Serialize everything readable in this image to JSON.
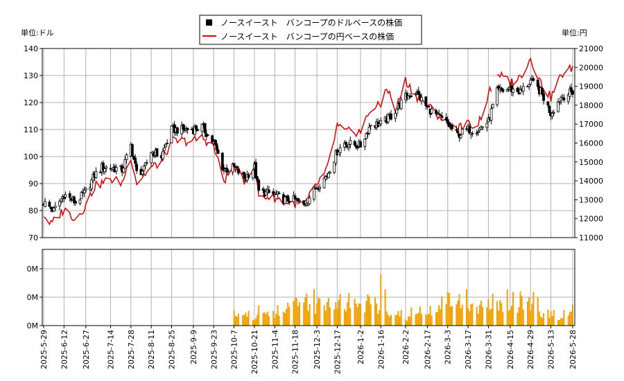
{
  "chart_data": {
    "type": "candlestick",
    "legend": [
      {
        "name": "ノースイースト　バンコープのドルベースの株価",
        "color": "#000000",
        "symbol": "square"
      },
      {
        "name": "ノースイースト　バンコープの円ベースの株価",
        "color": "#dd0000",
        "symbol": "line"
      }
    ],
    "legend_position": "top-center",
    "grid": true,
    "price_panel": {
      "left_unit": "単位:ドル",
      "right_unit": "単位:円",
      "ylim_left": [
        70,
        140
      ],
      "ylim_right": [
        11000,
        21000
      ],
      "y_ticks_left": [
        "70",
        "80",
        "90",
        "100",
        "110",
        "120",
        "130",
        "140"
      ],
      "y_ticks_right": [
        "11000",
        "12000",
        "13000",
        "14000",
        "15000",
        "16000",
        "17000",
        "18000",
        "19000",
        "20000",
        "21000"
      ]
    },
    "volume_panel": {
      "y_ticks": [
        "0M",
        "0M",
        "0M"
      ],
      "color": "#f0a000"
    },
    "x_ticks": [
      "2025-5-29",
      "2025-6-12",
      "2025-6-27",
      "2025-7-14",
      "2025-7-28",
      "2025-8-11",
      "2025-8-25",
      "2025-9-9",
      "2025-9-23",
      "2025-10-7",
      "2025-10-21",
      "2025-11-4",
      "2025-11-18",
      "2025-12-3",
      "2025-12-17",
      "2026-1-2",
      "2026-1-16",
      "2026-2-2",
      "2026-2-17",
      "2026-3-3",
      "2026-3-17",
      "2026-3-31",
      "2026-4-15",
      "2026-4-29",
      "2026-5-13",
      "2026-5-28"
    ],
    "usd_price_anchors": [
      [
        "2025-5-29",
        83
      ],
      [
        "2025-6-5",
        80
      ],
      [
        "2025-6-12",
        86
      ],
      [
        "2025-6-20",
        83
      ],
      [
        "2025-6-27",
        87
      ],
      [
        "2025-7-3",
        93
      ],
      [
        "2025-7-8",
        96
      ],
      [
        "2025-7-14",
        96
      ],
      [
        "2025-7-22",
        95
      ],
      [
        "2025-7-28",
        104
      ],
      [
        "2025-8-1",
        94
      ],
      [
        "2025-8-6",
        95
      ],
      [
        "2025-8-11",
        102
      ],
      [
        "2025-8-18",
        100
      ],
      [
        "2025-8-25",
        110
      ],
      [
        "2025-9-2",
        110
      ],
      [
        "2025-9-9",
        110
      ],
      [
        "2025-9-15",
        111
      ],
      [
        "2025-9-23",
        105
      ],
      [
        "2025-9-30",
        95
      ],
      [
        "2025-10-7",
        96
      ],
      [
        "2025-10-14",
        92
      ],
      [
        "2025-10-21",
        96
      ],
      [
        "2025-10-24",
        87
      ],
      [
        "2025-11-4",
        86
      ],
      [
        "2025-11-11",
        84
      ],
      [
        "2025-11-18",
        84
      ],
      [
        "2025-11-24",
        82
      ],
      [
        "2025-12-3",
        89
      ],
      [
        "2025-12-10",
        93
      ],
      [
        "2025-12-17",
        102
      ],
      [
        "2025-12-22",
        105
      ],
      [
        "2026-1-2",
        104
      ],
      [
        "2026-1-9",
        112
      ],
      [
        "2026-1-16",
        112
      ],
      [
        "2026-1-23",
        115
      ],
      [
        "2026-2-2",
        122
      ],
      [
        "2026-2-9",
        124
      ],
      [
        "2026-2-17",
        118
      ],
      [
        "2026-2-24",
        115
      ],
      [
        "2026-3-3",
        112
      ],
      [
        "2026-3-10",
        108
      ],
      [
        "2026-3-17",
        110
      ],
      [
        "2026-3-24",
        110
      ],
      [
        "2026-3-31",
        113
      ],
      [
        "2026-4-6",
        124
      ],
      [
        "2026-4-15",
        125
      ],
      [
        "2026-4-22",
        124
      ],
      [
        "2026-4-29",
        128
      ],
      [
        "2026-5-6",
        124
      ],
      [
        "2026-5-13",
        116
      ],
      [
        "2026-5-20",
        122
      ],
      [
        "2026-5-28",
        124
      ]
    ],
    "jpy_price_anchors": [
      [
        "2025-5-29",
        12200
      ],
      [
        "2025-6-3",
        11700
      ],
      [
        "2025-6-12",
        12500
      ],
      [
        "2025-6-20",
        12000
      ],
      [
        "2025-6-27",
        12700
      ],
      [
        "2025-7-3",
        13700
      ],
      [
        "2025-7-14",
        14100
      ],
      [
        "2025-7-22",
        13900
      ],
      [
        "2025-7-28",
        15300
      ],
      [
        "2025-8-1",
        13900
      ],
      [
        "2025-8-11",
        14700
      ],
      [
        "2025-8-18",
        15000
      ],
      [
        "2025-8-25",
        16100
      ],
      [
        "2025-9-9",
        16100
      ],
      [
        "2025-9-15",
        16300
      ],
      [
        "2025-9-23",
        15800
      ],
      [
        "2025-9-30",
        14000
      ],
      [
        "2025-10-7",
        14800
      ],
      [
        "2025-10-14",
        14000
      ],
      [
        "2025-10-21",
        14800
      ],
      [
        "2025-10-24",
        13200
      ],
      [
        "2025-11-4",
        13100
      ],
      [
        "2025-11-11",
        12900
      ],
      [
        "2025-11-18",
        12800
      ],
      [
        "2025-11-25",
        12800
      ],
      [
        "2025-12-3",
        13800
      ],
      [
        "2025-12-10",
        14600
      ],
      [
        "2025-12-17",
        16900
      ],
      [
        "2025-12-22",
        16600
      ],
      [
        "2026-1-2",
        16600
      ],
      [
        "2026-1-9",
        17800
      ],
      [
        "2026-1-16",
        18000
      ],
      [
        "2026-1-20",
        19000
      ],
      [
        "2026-1-26",
        17700
      ],
      [
        "2026-2-2",
        19300
      ],
      [
        "2026-2-9",
        18500
      ],
      [
        "2026-2-17",
        18000
      ],
      [
        "2026-2-24",
        17500
      ],
      [
        "2026-3-3",
        17000
      ],
      [
        "2026-3-10",
        16800
      ],
      [
        "2026-3-17",
        17000
      ],
      [
        "2026-3-24",
        17000
      ],
      [
        "2026-3-31",
        18500
      ],
      [
        "2026-4-2",
        18900
      ]
    ],
    "jpy_price_anchors_2": [
      [
        "2026-4-6",
        19700
      ],
      [
        "2026-4-15",
        19200
      ],
      [
        "2026-4-22",
        19500
      ],
      [
        "2026-4-29",
        20500
      ],
      [
        "2026-5-6",
        19200
      ],
      [
        "2026-5-13",
        18400
      ],
      [
        "2026-5-20",
        19600
      ],
      [
        "2026-5-28",
        20000
      ]
    ],
    "volume_start": "2025-10-7",
    "volume_pattern": [
      0.4,
      0.35,
      0.3,
      0.38,
      0.42,
      0.32,
      0.45,
      0.28,
      0.5,
      0.2,
      0.15,
      0.25,
      0.3,
      0.55,
      0.33,
      0.45,
      0.4,
      0.55,
      0.35,
      0.42,
      0.3,
      0.5,
      0.6,
      0.28,
      0.45,
      0.38,
      0.55,
      0.7,
      0.75,
      0.65,
      0.9,
      0.95,
      0.55,
      0.8,
      0.6,
      0.85,
      0.92,
      0.5,
      0.7,
      1.0,
      0.45,
      0.62,
      0.78,
      0.88,
      0.55,
      0.4,
      0.65,
      0.72,
      0.58,
      0.48,
      0.95,
      0.6,
      0.7,
      0.82,
      0.66,
      0.5,
      0.75,
      0.85,
      0.55,
      1.1,
      0.62,
      0.5,
      0.78,
      0.9,
      0.4,
      0.68,
      0.95,
      1.2,
      0.55,
      0.72,
      0.88,
      0.5,
      0.65,
      1.4,
      1.0
    ]
  }
}
